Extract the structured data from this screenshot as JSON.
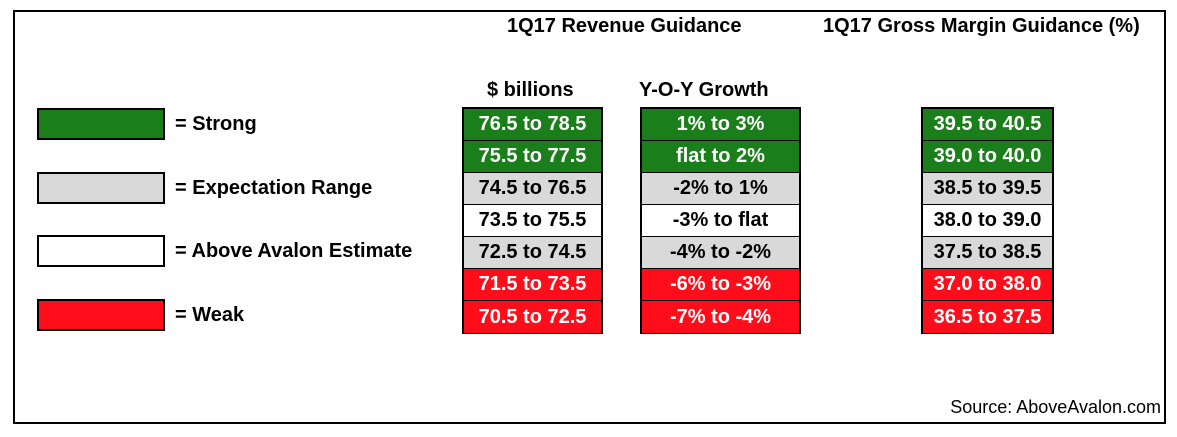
{
  "chart_data": {
    "type": "table",
    "headings": {
      "revenue": "1Q17 Revenue Guidance",
      "gross_margin": "1Q17 Gross Margin Guidance (%)"
    },
    "column_labels": {
      "billions": "$ billions",
      "yoy": "Y-O-Y Growth"
    },
    "legend": [
      {
        "label": "= Strong",
        "color": "#1a7f1a"
      },
      {
        "label": "= Expectation Range",
        "color": "#d9d9d9"
      },
      {
        "label": "= Above Avalon Estimate",
        "color": "#ffffff"
      },
      {
        "label": "= Weak",
        "color": "#ff0d1a"
      }
    ],
    "rows": [
      {
        "category": "strong",
        "billions": "76.5 to 78.5",
        "yoy": "1% to 3%",
        "gross_margin": "39.5 to 40.5"
      },
      {
        "category": "strong",
        "billions": "75.5 to 77.5",
        "yoy": "flat to 2%",
        "gross_margin": "39.0 to 40.0"
      },
      {
        "category": "expect",
        "billions": "74.5 to 76.5",
        "yoy": "-2% to 1%",
        "gross_margin": "38.5 to 39.5"
      },
      {
        "category": "above",
        "billions": "73.5 to 75.5",
        "yoy": "-3% to flat",
        "gross_margin": "38.0 to 39.0"
      },
      {
        "category": "expect",
        "billions": "72.5 to 74.5",
        "yoy": "-4% to -2%",
        "gross_margin": "37.5 to 38.5"
      },
      {
        "category": "weak",
        "billions": "71.5 to 73.5",
        "yoy": "-6% to -3%",
        "gross_margin": "37.0 to 38.0"
      },
      {
        "category": "weak",
        "billions": "70.5 to 72.5",
        "yoy": "-7% to -4%",
        "gross_margin": "36.5 to 37.5"
      }
    ],
    "source": "Source: AboveAvalon.com"
  }
}
